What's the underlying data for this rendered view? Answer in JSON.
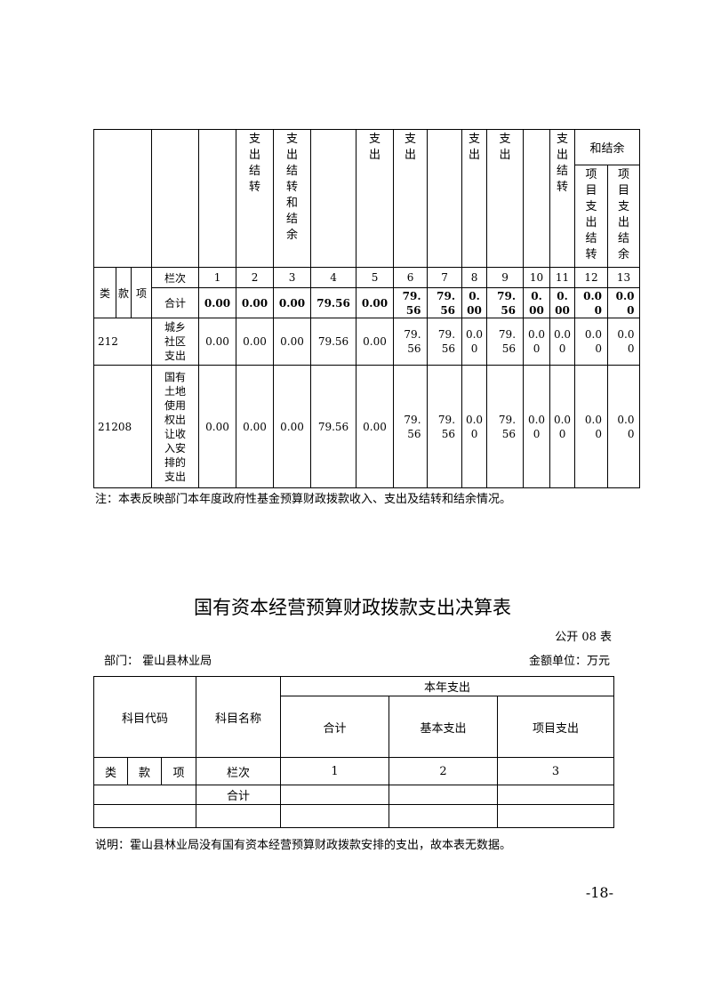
{
  "table1": {
    "header_cols": [
      "",
      "支出结转",
      "支出结转和结余",
      "",
      "支出",
      "支出",
      "",
      "支出",
      "支出",
      "",
      "支出结转"
    ],
    "group_header": "和结余",
    "sub_headers": [
      "项目支出结转",
      "项目支出结余"
    ],
    "code_headers": [
      "类",
      "款",
      "项"
    ],
    "index_label": "栏次",
    "index_values": [
      "1",
      "2",
      "3",
      "4",
      "5",
      "6",
      "7",
      "8",
      "9",
      "10",
      "11",
      "12",
      "13"
    ],
    "total_label": "合计",
    "total_values": [
      "0.00",
      "0.00",
      "0.00",
      "79.56",
      "0.00",
      "79.56",
      "79.56",
      "0.00",
      "79.56",
      "0.00",
      "0.00",
      "0.00",
      "0.00"
    ],
    "rows": [
      {
        "code": "212",
        "name": "城乡社区支出",
        "values": [
          "0.00",
          "0.00",
          "0.00",
          "79.56",
          "0.00",
          "79.56",
          "79.56",
          "0.00",
          "79.56",
          "0.00",
          "0.00",
          "0.00",
          "0.00"
        ]
      },
      {
        "code": "21208",
        "name": "国有土地使用权出让收入安排的支出",
        "values": [
          "0.00",
          "0.00",
          "0.00",
          "79.56",
          "0.00",
          "79.56",
          "79.56",
          "0.00",
          "79.56",
          "0.00",
          "0.00",
          "0.00",
          "0.00"
        ]
      }
    ],
    "note": "注：本表反映部门本年度政府性基金预算财政拨款收入、支出及结转和结余情况。"
  },
  "table2": {
    "title": "国有资本经营预算财政拨款支出决算表",
    "table_no": "公开 08 表",
    "department": "部门：  霍山县林业局",
    "unit": "金额单位：万元",
    "code_header": "科目代码",
    "name_header": "科目名称",
    "group_header": "本年支出",
    "columns": [
      "合计",
      "基本支出",
      "项目支出"
    ],
    "code_headers": [
      "类",
      "款",
      "项"
    ],
    "index_label": "栏次",
    "index_values": [
      "1",
      "2",
      "3"
    ],
    "total_label": "合计",
    "note": "说明：霍山县林业局没有国有资本经营预算财政拨款安排的支出，故本表无数据。"
  },
  "page_number": "-18-"
}
